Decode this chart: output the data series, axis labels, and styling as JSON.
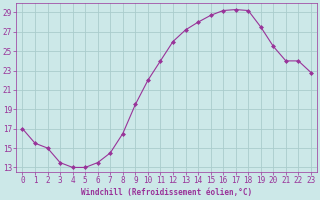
{
  "x": [
    0,
    1,
    2,
    3,
    4,
    5,
    6,
    7,
    8,
    9,
    10,
    11,
    12,
    13,
    14,
    15,
    16,
    17,
    18,
    19,
    20,
    21,
    22,
    23
  ],
  "y": [
    17,
    15.5,
    15,
    13.5,
    13,
    13,
    13.5,
    14.5,
    16.5,
    19.5,
    22,
    24,
    26,
    27.2,
    28,
    28.7,
    29.2,
    29.3,
    29.2,
    27.5,
    25.5,
    24,
    24,
    22.8
  ],
  "line_color": "#993399",
  "marker": "D",
  "marker_size": 2,
  "bg_color": "#cce8e8",
  "grid_color": "#aacccc",
  "xlabel": "Windchill (Refroidissement éolien,°C)",
  "xlim": [
    -0.5,
    23.5
  ],
  "ylim": [
    12.5,
    30
  ],
  "yticks": [
    13,
    15,
    17,
    19,
    21,
    23,
    25,
    27,
    29
  ],
  "xticks": [
    0,
    1,
    2,
    3,
    4,
    5,
    6,
    7,
    8,
    9,
    10,
    11,
    12,
    13,
    14,
    15,
    16,
    17,
    18,
    19,
    20,
    21,
    22,
    23
  ],
  "tick_color": "#993399",
  "label_color": "#993399",
  "font": "monospace",
  "xlabel_fontsize": 5.5,
  "tick_fontsize": 5.5
}
